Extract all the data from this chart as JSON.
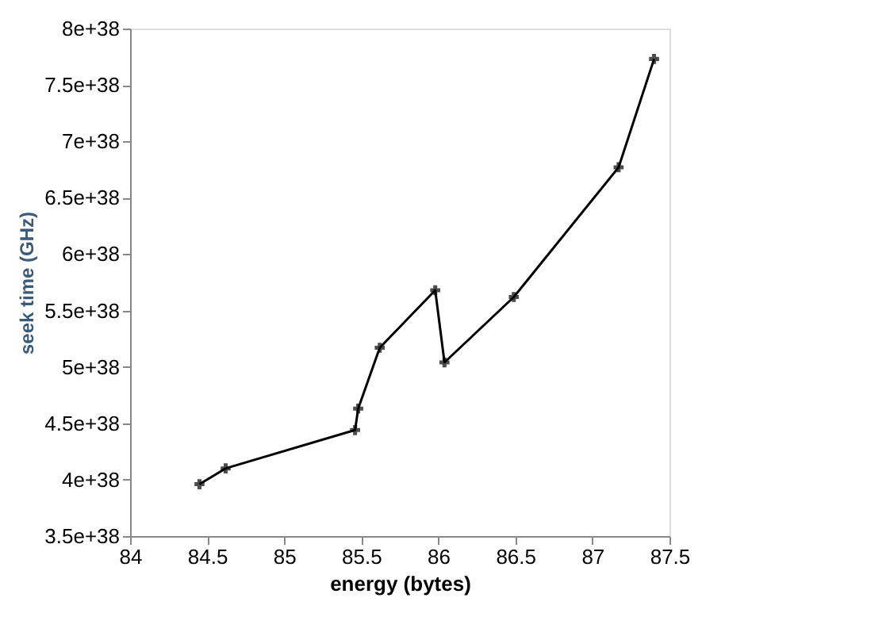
{
  "chart_data": {
    "type": "line",
    "xlabel": "energy (bytes)",
    "ylabel": "seek time (GHz)",
    "x": [
      84.45,
      84.62,
      85.46,
      85.48,
      85.62,
      85.98,
      86.04,
      86.49,
      87.17,
      87.4
    ],
    "series": [
      {
        "color": "#000000",
        "values": [
          3.96e+38,
          4.1e+38,
          4.44e+38,
          4.63e+38,
          5.17e+38,
          5.68e+38,
          5.04e+38,
          5.62e+38,
          6.77e+38,
          7.73e+38
        ]
      }
    ],
    "xlim": [
      84,
      87.5
    ],
    "xticks": [
      84,
      84.5,
      85,
      85.5,
      86,
      86.5,
      87,
      87.5
    ],
    "ylim": [
      3.5e+38,
      8e+38
    ],
    "yticks": [
      {
        "value": 3.5e+38,
        "label": "3.5e+38"
      },
      {
        "value": 4e+38,
        "label": "4e+38"
      },
      {
        "value": 4.5e+38,
        "label": "4.5e+38"
      },
      {
        "value": 5e+38,
        "label": "5e+38"
      },
      {
        "value": 5.5e+38,
        "label": "5.5e+38"
      },
      {
        "value": 6e+38,
        "label": "6e+38"
      },
      {
        "value": 6.5e+38,
        "label": "6.5e+38"
      },
      {
        "value": 7e+38,
        "label": "7e+38"
      },
      {
        "value": 7.5e+38,
        "label": "7.5e+38"
      },
      {
        "value": 8e+38,
        "label": "8e+38"
      }
    ],
    "grid": false,
    "marker": "cross",
    "line_style": "solid"
  }
}
